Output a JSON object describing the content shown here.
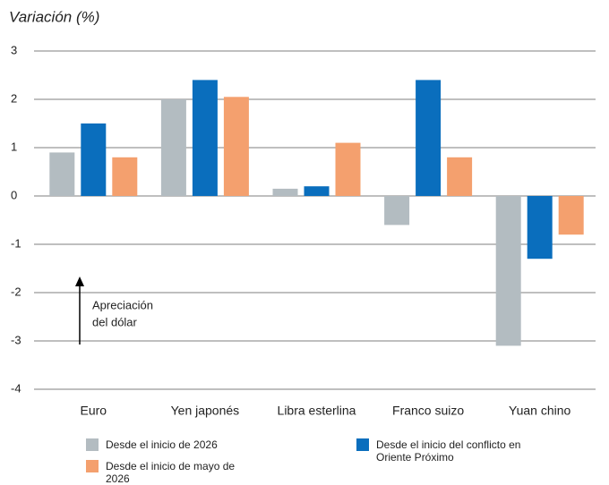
{
  "chart_data": {
    "type": "bar",
    "title": "Variación (%)",
    "categories": [
      "Euro",
      "Yen japonés",
      "Libra esterlina",
      "Franco suizo",
      "Yuan chino"
    ],
    "series": [
      {
        "name": "Desde el inicio de 2026",
        "color": "#b3bcc1",
        "values": [
          0.9,
          2.0,
          0.15,
          -0.6,
          -3.1
        ]
      },
      {
        "name": "Desde el inicio del conflicto en Oriente Próximo",
        "color": "#0a6ebd",
        "values": [
          1.5,
          2.4,
          0.2,
          2.4,
          -1.3
        ]
      },
      {
        "name": "Desde el inicio de mayo de 2026",
        "color": "#f4a06e",
        "values": [
          0.8,
          2.05,
          1.1,
          0.8,
          -0.8
        ]
      }
    ],
    "ylim": [
      -4,
      3
    ],
    "yticks": [
      -4,
      -3,
      -2,
      -1,
      0,
      1,
      2,
      3
    ],
    "grid": true,
    "annotation": {
      "lines": [
        "Apreciación",
        "del dólar"
      ]
    }
  }
}
